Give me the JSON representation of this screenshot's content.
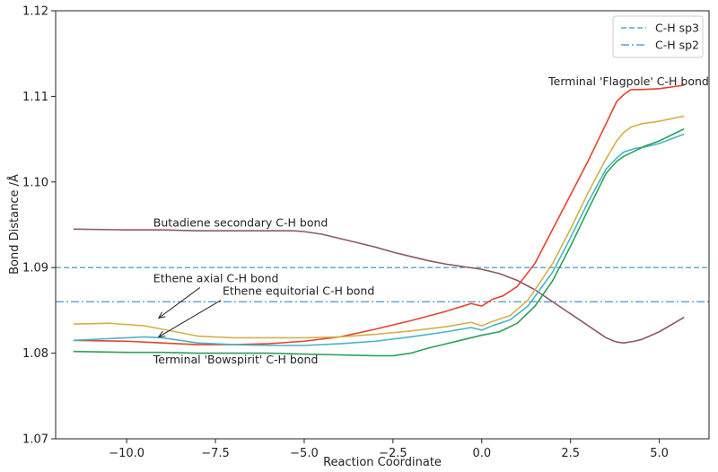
{
  "chart_data": {
    "type": "line",
    "title": "",
    "xlabel": "Reaction Coordinate",
    "ylabel": "Bond Distance /Å",
    "xlim": [
      -12.0,
      6.4
    ],
    "ylim": [
      1.07,
      1.12
    ],
    "xticks": [
      -10.0,
      -7.5,
      -5.0,
      -2.5,
      0.0,
      2.5,
      5.0
    ],
    "xtick_labels": [
      "−10.0",
      "−7.5",
      "−5.0",
      "−2.5",
      "0.0",
      "2.5",
      "5.0"
    ],
    "yticks": [
      1.07,
      1.08,
      1.09,
      1.1,
      1.11,
      1.12
    ],
    "ytick_labels": [
      "1.07",
      "1.08",
      "1.09",
      "1.10",
      "1.11",
      "1.12"
    ],
    "grid": false,
    "legend_position": "top-right",
    "reference_lines": [
      {
        "name": "C-H sp3",
        "y": 1.09,
        "style": "dashed",
        "color": "#5a9fd4"
      },
      {
        "name": "C-H sp2",
        "y": 1.086,
        "style": "dashdot",
        "color": "#5a9fd4"
      }
    ],
    "series": [
      {
        "color": "#8c5a5e",
        "x": [
          -11.5,
          -10,
          -9,
          -8,
          -7,
          -6,
          -5.3,
          -5,
          -4.5,
          -4,
          -3.5,
          -3,
          -2.5,
          -2,
          -1.5,
          -1,
          -0.5,
          0,
          0.5,
          1,
          1.5,
          2,
          2.5,
          3,
          3.5,
          3.8,
          4.0,
          4.3,
          4.5,
          5,
          5.7
        ],
        "y": [
          1.0945,
          1.0944,
          1.0944,
          1.0943,
          1.0943,
          1.0943,
          1.0943,
          1.0942,
          1.0939,
          1.0934,
          1.0929,
          1.0924,
          1.0918,
          1.0913,
          1.0908,
          1.0904,
          1.0901,
          1.0898,
          1.0893,
          1.0885,
          1.0874,
          1.086,
          1.0846,
          1.0832,
          1.0818,
          1.0813,
          1.0812,
          1.0814,
          1.0816,
          1.0825,
          1.0842
        ]
      },
      {
        "color": "#e8412c",
        "x": [
          -11.5,
          -10,
          -9,
          -8,
          -7,
          -6,
          -5,
          -4,
          -3,
          -2,
          -1,
          -0.3,
          0,
          0.3,
          0.6,
          1,
          1.5,
          2,
          2.5,
          3,
          3.5,
          3.8,
          4.0,
          4.2,
          4.5,
          5,
          5.7
        ],
        "y": [
          1.0815,
          1.0814,
          1.0812,
          1.081,
          1.081,
          1.0811,
          1.0814,
          1.0819,
          1.0828,
          1.0838,
          1.0849,
          1.0858,
          1.0855,
          1.0863,
          1.0867,
          1.0878,
          1.0905,
          1.0945,
          1.0985,
          1.1025,
          1.1068,
          1.1094,
          1.1102,
          1.1108,
          1.1108,
          1.1109,
          1.1113
        ]
      },
      {
        "color": "#d4b04a",
        "x": [
          -11.5,
          -10.5,
          -9.5,
          -9,
          -8,
          -7,
          -6,
          -5,
          -4,
          -3,
          -2,
          -1,
          -0.3,
          0,
          0.3,
          0.8,
          1.3,
          2,
          2.5,
          3,
          3.5,
          3.8,
          4,
          4.2,
          4.5,
          5,
          5.7
        ],
        "y": [
          1.0834,
          1.0835,
          1.0832,
          1.0828,
          1.082,
          1.0818,
          1.0818,
          1.0818,
          1.0819,
          1.0822,
          1.0826,
          1.0831,
          1.0836,
          1.0832,
          1.0837,
          1.0844,
          1.0862,
          1.0905,
          1.0945,
          1.0988,
          1.1027,
          1.1048,
          1.1058,
          1.1064,
          1.1068,
          1.1071,
          1.1077
        ]
      },
      {
        "color": "#45b5c9",
        "x": [
          -11.5,
          -10.5,
          -10,
          -9.5,
          -9,
          -8,
          -7,
          -6,
          -5,
          -4,
          -3,
          -2,
          -1,
          -0.3,
          0,
          0.3,
          0.8,
          1.3,
          2,
          2.5,
          3,
          3.5,
          3.8,
          4,
          4.3,
          4.6,
          5,
          5.7
        ],
        "y": [
          1.0815,
          1.0817,
          1.0818,
          1.0819,
          1.0818,
          1.0812,
          1.081,
          1.0809,
          1.0809,
          1.0811,
          1.0814,
          1.0819,
          1.0825,
          1.083,
          1.0827,
          1.0832,
          1.0839,
          1.0855,
          1.0895,
          1.0935,
          1.0977,
          1.1015,
          1.1028,
          1.1035,
          1.1039,
          1.1041,
          1.1045,
          1.1056
        ]
      },
      {
        "color": "#2ca05a",
        "x": [
          -11.5,
          -10,
          -9,
          -8,
          -7,
          -6,
          -5,
          -4,
          -3,
          -2.5,
          -2,
          -1.5,
          -1,
          -0.5,
          0,
          0.5,
          1,
          1.5,
          2,
          2.5,
          3,
          3.5,
          3.8,
          4,
          4.3,
          4.6,
          5,
          5.7
        ],
        "y": [
          1.0802,
          1.0801,
          1.0801,
          1.08,
          1.08,
          1.08,
          1.0799,
          1.0798,
          1.0797,
          1.0797,
          1.08,
          1.0806,
          1.0811,
          1.0816,
          1.0821,
          1.0825,
          1.0835,
          1.0855,
          1.0885,
          1.0925,
          1.0968,
          1.101,
          1.1024,
          1.103,
          1.1036,
          1.1042,
          1.1048,
          1.1062
        ]
      }
    ],
    "annotations": [
      {
        "text": "Terminal 'Flagpole' C-H bond",
        "x": 1.88,
        "y": 1.1113,
        "arrow": false
      },
      {
        "text": "Butadiene secondary C-H bond",
        "x": -9.25,
        "y": 1.0948,
        "arrow": false
      },
      {
        "text": "Ethene axial C-H bond",
        "x": -9.25,
        "y": 1.0883,
        "arrow": true,
        "arrow_to": [
          -9.1,
          1.0841
        ]
      },
      {
        "text": "Ethene equitorial C-H bond",
        "x": -7.3,
        "y": 1.0868,
        "arrow": true,
        "arrow_to": [
          -9.1,
          1.0819
        ]
      },
      {
        "text": "Terminal 'Bowspirit' C-H bond",
        "x": -9.25,
        "y": 1.0788,
        "arrow": false
      }
    ]
  }
}
